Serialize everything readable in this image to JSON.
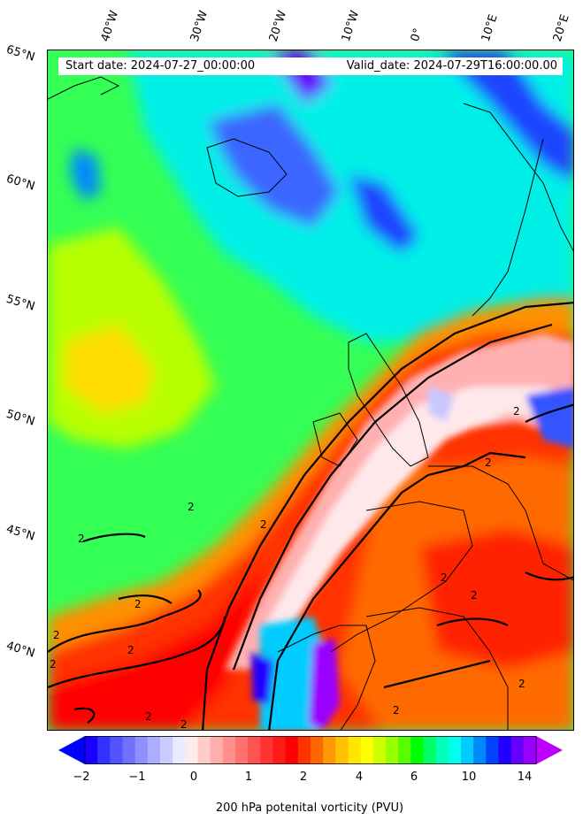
{
  "header": {
    "start_date": "Start date: 2024-07-27_00:00:00",
    "valid_date": "Valid_date: 2024-07-29T16:00:00.00"
  },
  "longitude_labels": [
    "40°W",
    "30°W",
    "20°W",
    "10°W",
    "0°",
    "10°E",
    "20°E"
  ],
  "latitude_labels": [
    "65°N",
    "60°N",
    "55°N",
    "50°N",
    "45°N",
    "40°N"
  ],
  "contour_label": "2",
  "colorbar": {
    "title": "200 hPa potenital vorticity (PVU)",
    "ticks": [
      "−2",
      "−1",
      "0",
      "1",
      "2",
      "4",
      "6",
      "10",
      "14"
    ],
    "colors": [
      "#1a00ff",
      "#3333ff",
      "#5252ff",
      "#7070ff",
      "#8f8fff",
      "#adadff",
      "#cbcbff",
      "#eaeaff",
      "#ffeaea",
      "#ffcbcb",
      "#ffadad",
      "#ff8f8f",
      "#ff7070",
      "#ff5252",
      "#ff3333",
      "#ff1a1a",
      "#ff0000",
      "#ff3300",
      "#ff6600",
      "#ff9900",
      "#ffc000",
      "#ffe600",
      "#ffff00",
      "#ccff00",
      "#99ff00",
      "#55ff00",
      "#00ff00",
      "#00ff66",
      "#00ffbb",
      "#00ffee",
      "#00ccff",
      "#0088ff",
      "#0044ff",
      "#2200ff",
      "#6600ff",
      "#9900ff"
    ],
    "min_arrow": "#0000ff",
    "max_arrow": "#bb00ff"
  }
}
